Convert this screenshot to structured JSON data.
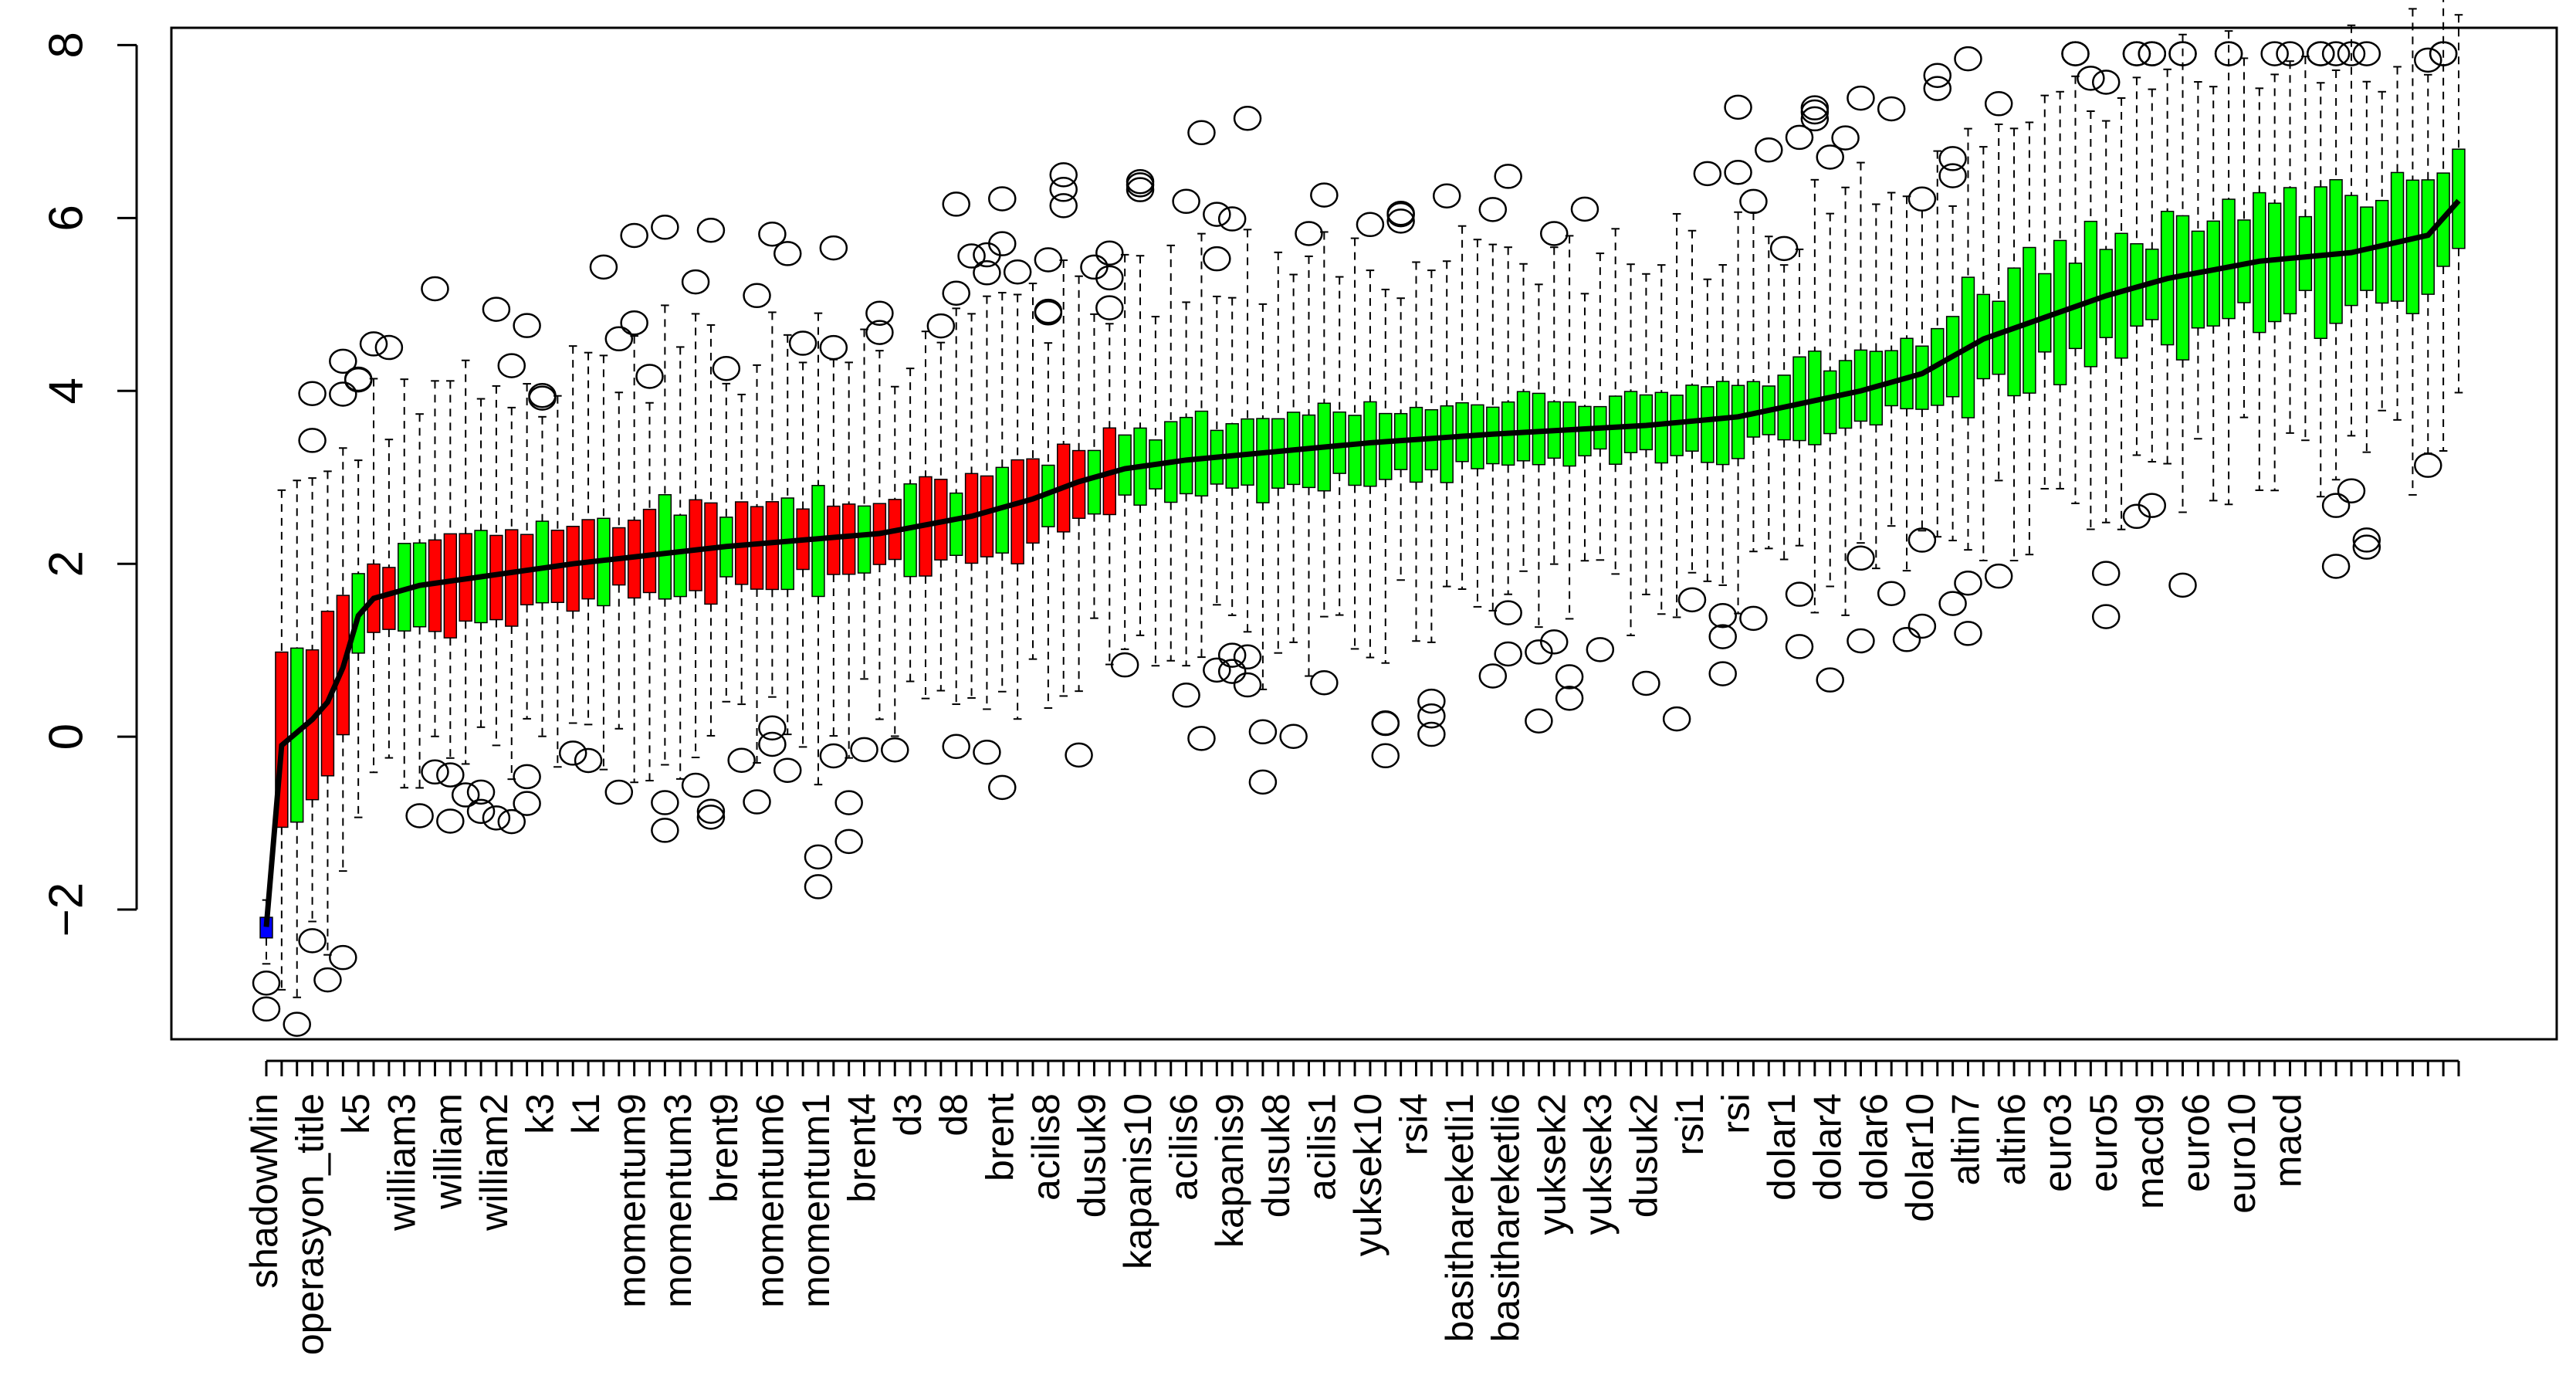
{
  "chart_data": {
    "type": "boxplot",
    "title": "",
    "xlabel": "",
    "ylabel": "",
    "ylim": [
      -3.5,
      8.2
    ],
    "y_ticks": [
      -2,
      0,
      2,
      4,
      6,
      8
    ],
    "y_tick_labels": [
      "−2",
      "0",
      "2",
      "4",
      "6",
      "8"
    ],
    "box_colors": {
      "red": "#ff0000",
      "green": "#00ff00",
      "blue": "#0000ff",
      "median": "#000000",
      "whisker": "#000000"
    },
    "n_boxes": 144,
    "x_labels": [
      {
        "index": 0,
        "text": "shadowMin"
      },
      {
        "index": 3,
        "text": "operasyon_title"
      },
      {
        "index": 6,
        "text": "k5"
      },
      {
        "index": 9,
        "text": "william3"
      },
      {
        "index": 12,
        "text": "william"
      },
      {
        "index": 15,
        "text": "william2"
      },
      {
        "index": 18,
        "text": "k3"
      },
      {
        "index": 21,
        "text": "k1"
      },
      {
        "index": 24,
        "text": "momentum9"
      },
      {
        "index": 27,
        "text": "momentum3"
      },
      {
        "index": 30,
        "text": "brent9"
      },
      {
        "index": 33,
        "text": "momentum6"
      },
      {
        "index": 36,
        "text": "momentum1"
      },
      {
        "index": 39,
        "text": "brent4"
      },
      {
        "index": 42,
        "text": "d3"
      },
      {
        "index": 45,
        "text": "d8"
      },
      {
        "index": 48,
        "text": "brent"
      },
      {
        "index": 51,
        "text": "acilis8"
      },
      {
        "index": 54,
        "text": "dusuk9"
      },
      {
        "index": 57,
        "text": "kapanis10"
      },
      {
        "index": 60,
        "text": "acilis6"
      },
      {
        "index": 63,
        "text": "kapanis9"
      },
      {
        "index": 66,
        "text": "dusuk8"
      },
      {
        "index": 69,
        "text": "acilis1"
      },
      {
        "index": 72,
        "text": "yuksek10"
      },
      {
        "index": 75,
        "text": "rsi4"
      },
      {
        "index": 78,
        "text": "basithareketli1"
      },
      {
        "index": 81,
        "text": "basithareketli6"
      },
      {
        "index": 84,
        "text": "yuksek2"
      },
      {
        "index": 87,
        "text": "yuksek3"
      },
      {
        "index": 90,
        "text": "dusuk2"
      },
      {
        "index": 93,
        "text": "rsi1"
      },
      {
        "index": 96,
        "text": "rsi"
      },
      {
        "index": 99,
        "text": "dolar1"
      },
      {
        "index": 102,
        "text": "dolar4"
      },
      {
        "index": 105,
        "text": "dolar6"
      },
      {
        "index": 108,
        "text": "dolar10"
      },
      {
        "index": 111,
        "text": "altin7"
      },
      {
        "index": 114,
        "text": "altin6"
      },
      {
        "index": 117,
        "text": "euro3"
      },
      {
        "index": 120,
        "text": "euro5"
      },
      {
        "index": 123,
        "text": "macd9"
      },
      {
        "index": 126,
        "text": "euro6"
      },
      {
        "index": 129,
        "text": "euro10"
      },
      {
        "index": 132,
        "text": "macd"
      }
    ],
    "median_trend": [
      [
        0,
        -2.2
      ],
      [
        1,
        -0.1
      ],
      [
        2,
        0.05
      ],
      [
        3,
        0.2
      ],
      [
        4,
        0.4
      ],
      [
        5,
        0.8
      ],
      [
        6,
        1.4
      ],
      [
        7,
        1.6
      ],
      [
        10,
        1.75
      ],
      [
        20,
        2.0
      ],
      [
        30,
        2.2
      ],
      [
        40,
        2.35
      ],
      [
        46,
        2.55
      ],
      [
        50,
        2.75
      ],
      [
        53,
        2.95
      ],
      [
        56,
        3.1
      ],
      [
        60,
        3.2
      ],
      [
        66,
        3.3
      ],
      [
        72,
        3.4
      ],
      [
        80,
        3.5
      ],
      [
        90,
        3.6
      ],
      [
        96,
        3.7
      ],
      [
        100,
        3.85
      ],
      [
        104,
        4.0
      ],
      [
        108,
        4.2
      ],
      [
        112,
        4.6
      ],
      [
        116,
        4.85
      ],
      [
        120,
        5.1
      ],
      [
        124,
        5.3
      ],
      [
        130,
        5.5
      ],
      [
        136,
        5.6
      ],
      [
        141,
        5.8
      ],
      [
        143,
        6.2
      ]
    ],
    "color_segments": [
      {
        "from": 0,
        "to": 0,
        "color": "blue"
      },
      {
        "from": 1,
        "to": 36,
        "color": "red-green-mixed"
      },
      {
        "from": 37,
        "to": 55,
        "color": "red-green-mixed"
      },
      {
        "from": 56,
        "to": 143,
        "color": "green"
      }
    ]
  }
}
